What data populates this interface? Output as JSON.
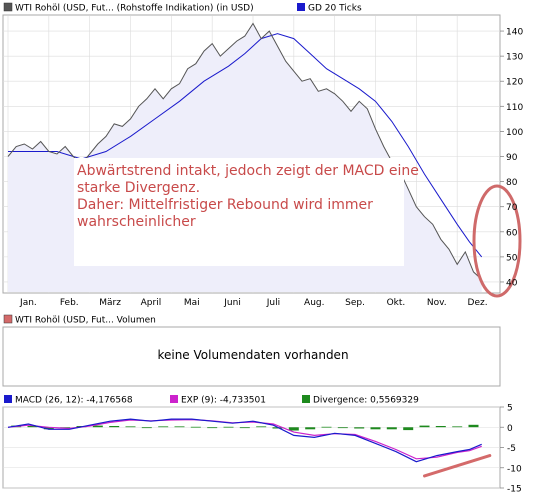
{
  "colors": {
    "price": "#555555",
    "gd20": "#1a1acc",
    "area_fill": "#eeeefa",
    "macd": "#1a1acc",
    "exp": "#cc22cc",
    "divergence": "#1e8a1e",
    "annotation": "#c84a4a",
    "panel_border": "#a8a8a8",
    "grid": "#dcdcdc"
  },
  "volume_panel": {
    "legend": "WTI Rohöl (USD, Fut... Volumen",
    "message": "keine Volumendaten vorhanden"
  },
  "chart_data": [
    {
      "type": "line",
      "legend": [
        {
          "label": "WTI Rohöl (USD, Fut... (Rohstoffe Indikation) (in USD)",
          "color": "#555555"
        },
        {
          "label": "GD 20 Ticks",
          "color": "#1a1acc"
        }
      ],
      "xlabels": [
        "Jan.",
        "Feb.",
        "März",
        "April",
        "Mai",
        "Juni",
        "Juli",
        "Aug.",
        "Sep.",
        "Okt.",
        "Nov.",
        "Dez."
      ],
      "yticks": [
        40,
        50,
        60,
        70,
        80,
        90,
        100,
        110,
        120,
        130,
        140
      ],
      "ylim": [
        36,
        146
      ],
      "grid": true,
      "annotation": {
        "lines": [
          "Abwärtstrend intakt, jedoch zeigt der MACD eine",
          "starke Divergenz.",
          "Daher: Mittelfristiger Rebound wird immer",
          "wahrscheinlicher"
        ]
      },
      "series": [
        {
          "name": "WTI Rohöl (USD, Fut... (Rohstoffe Indikation) (in USD)",
          "x": [
            0,
            0.2,
            0.4,
            0.6,
            0.8,
            1.0,
            1.2,
            1.4,
            1.6,
            1.8,
            2.0,
            2.2,
            2.4,
            2.6,
            2.8,
            3.0,
            3.2,
            3.4,
            3.6,
            3.8,
            4.0,
            4.2,
            4.4,
            4.6,
            4.8,
            5.0,
            5.2,
            5.4,
            5.6,
            5.8,
            6.0,
            6.2,
            6.4,
            6.6,
            6.8,
            7.0,
            7.2,
            7.4,
            7.6,
            7.8,
            8.0,
            8.2,
            8.4,
            8.6,
            8.8,
            9.0,
            9.2,
            9.4,
            9.6,
            9.8,
            10.0,
            10.2,
            10.4,
            10.6,
            10.8,
            11.0,
            11.2,
            11.4,
            11.6
          ],
          "y": [
            90,
            94,
            95,
            93,
            96,
            92,
            91,
            94,
            90,
            87,
            91,
            95,
            98,
            103,
            102,
            105,
            110,
            113,
            117,
            113,
            117,
            119,
            125,
            127,
            132,
            135,
            130,
            133,
            136,
            138,
            143,
            137,
            140,
            134,
            128,
            124,
            120,
            121,
            116,
            117,
            115,
            112,
            108,
            112,
            109,
            101,
            94,
            88,
            84,
            77,
            70,
            66,
            63,
            57,
            53,
            47,
            52,
            44,
            41
          ]
        },
        {
          "name": "GD 20 Ticks",
          "x": [
            0,
            0.6,
            1.2,
            1.8,
            2.4,
            3.0,
            3.6,
            4.2,
            4.8,
            5.4,
            5.8,
            6.2,
            6.6,
            7.0,
            7.4,
            7.8,
            8.2,
            8.6,
            9.0,
            9.4,
            9.8,
            10.2,
            10.6,
            11.0,
            11.3,
            11.6
          ],
          "y": [
            92,
            92,
            92,
            89,
            92,
            98,
            105,
            112,
            120,
            126,
            131,
            137,
            139,
            137,
            131,
            125,
            121,
            117,
            112,
            104,
            94,
            83,
            73,
            63,
            56,
            50
          ]
        }
      ]
    },
    {
      "type": "line",
      "legend": [
        {
          "label": "MACD (26, 12): -4,176568",
          "color": "#1a1acc"
        },
        {
          "label": "EXP (9): -4,733501",
          "color": "#cc22cc"
        },
        {
          "label": "Divergence: 0,5569329",
          "color": "#1e8a1e"
        }
      ],
      "yticks": [
        5,
        0,
        -5,
        -10,
        -15
      ],
      "ylim": [
        -15,
        5
      ],
      "grid": true,
      "trendline": {
        "x": [
          10.2,
          11.8
        ],
        "y": [
          -12,
          -7
        ]
      },
      "series": [
        {
          "name": "MACD (26, 12)",
          "x": [
            0,
            0.5,
            1.0,
            1.5,
            2.0,
            2.5,
            3.0,
            3.5,
            4.0,
            4.5,
            5.0,
            5.5,
            6.0,
            6.5,
            7.0,
            7.5,
            8.0,
            8.5,
            9.0,
            9.5,
            10.0,
            10.5,
            11.0,
            11.3,
            11.6
          ],
          "y": [
            0,
            0.8,
            -0.5,
            -0.5,
            0.5,
            1.5,
            2,
            1.5,
            2,
            2,
            1.5,
            1,
            1.5,
            0.5,
            -2,
            -2.5,
            -1.5,
            -2,
            -4,
            -6,
            -8.5,
            -7,
            -6,
            -5.5,
            -4.2
          ]
        },
        {
          "name": "EXP (9)",
          "x": [
            0,
            0.5,
            1.0,
            1.5,
            2.0,
            2.5,
            3.0,
            3.5,
            4.0,
            4.5,
            5.0,
            5.5,
            6.0,
            6.5,
            7.0,
            7.5,
            8.0,
            8.5,
            9.0,
            9.5,
            10.0,
            10.5,
            11.0,
            11.3,
            11.6
          ],
          "y": [
            0,
            0.5,
            0,
            -0.3,
            0.3,
            1.2,
            1.8,
            1.6,
            1.8,
            1.9,
            1.6,
            1.1,
            1.3,
            0.8,
            -1.2,
            -2,
            -1.6,
            -1.8,
            -3.5,
            -5.5,
            -7.8,
            -7.4,
            -6.2,
            -5.8,
            -4.7
          ]
        },
        {
          "name": "Divergence",
          "type": "bar",
          "x": [
            0.2,
            0.6,
            1.0,
            1.4,
            1.8,
            2.2,
            2.6,
            3.0,
            3.4,
            3.8,
            4.2,
            4.6,
            5.0,
            5.4,
            5.8,
            6.2,
            6.6,
            7.0,
            7.4,
            7.8,
            8.2,
            8.6,
            9.0,
            9.4,
            9.8,
            10.2,
            10.6,
            11.0,
            11.4
          ],
          "y": [
            0.4,
            0.3,
            -0.5,
            -0.2,
            0.3,
            0.4,
            0.3,
            0.2,
            -0.1,
            0.2,
            0.2,
            0.1,
            -0.1,
            0.1,
            -0.1,
            0.2,
            -0.3,
            -0.8,
            -0.5,
            0.1,
            -0.2,
            -0.3,
            -0.5,
            -0.5,
            -0.7,
            0.4,
            0.3,
            0.2,
            0.6
          ]
        }
      ]
    }
  ]
}
